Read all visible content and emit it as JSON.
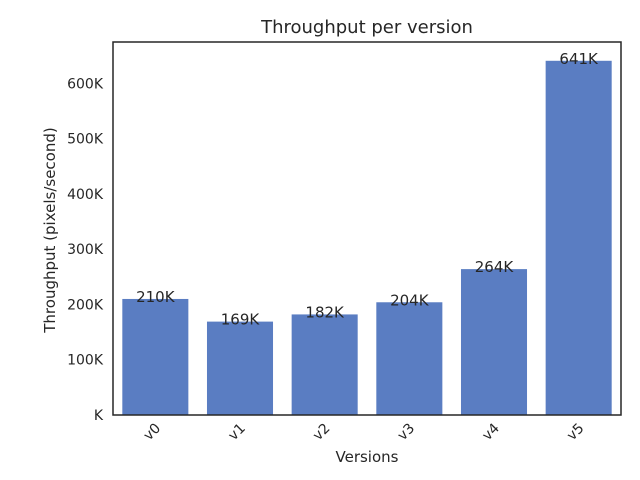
{
  "chart_data": {
    "type": "bar",
    "title": "Throughput per version",
    "xlabel": "Versions",
    "ylabel": "Throughput (pixels/second)",
    "categories": [
      "v0",
      "v1",
      "v2",
      "v3",
      "v4",
      "v5"
    ],
    "values": [
      210000,
      169000,
      182000,
      204000,
      264000,
      641000
    ],
    "data_labels": [
      "210K",
      "169K",
      "182K",
      "204K",
      "264K",
      "641K"
    ],
    "ylim": [
      0,
      675000
    ],
    "yticks": [
      0,
      100000,
      200000,
      300000,
      400000,
      500000,
      600000
    ],
    "ytick_labels": [
      "K",
      "100K",
      "200K",
      "300K",
      "400K",
      "500K",
      "600K"
    ],
    "grid": false,
    "bar_color": "#5a7dc2"
  }
}
